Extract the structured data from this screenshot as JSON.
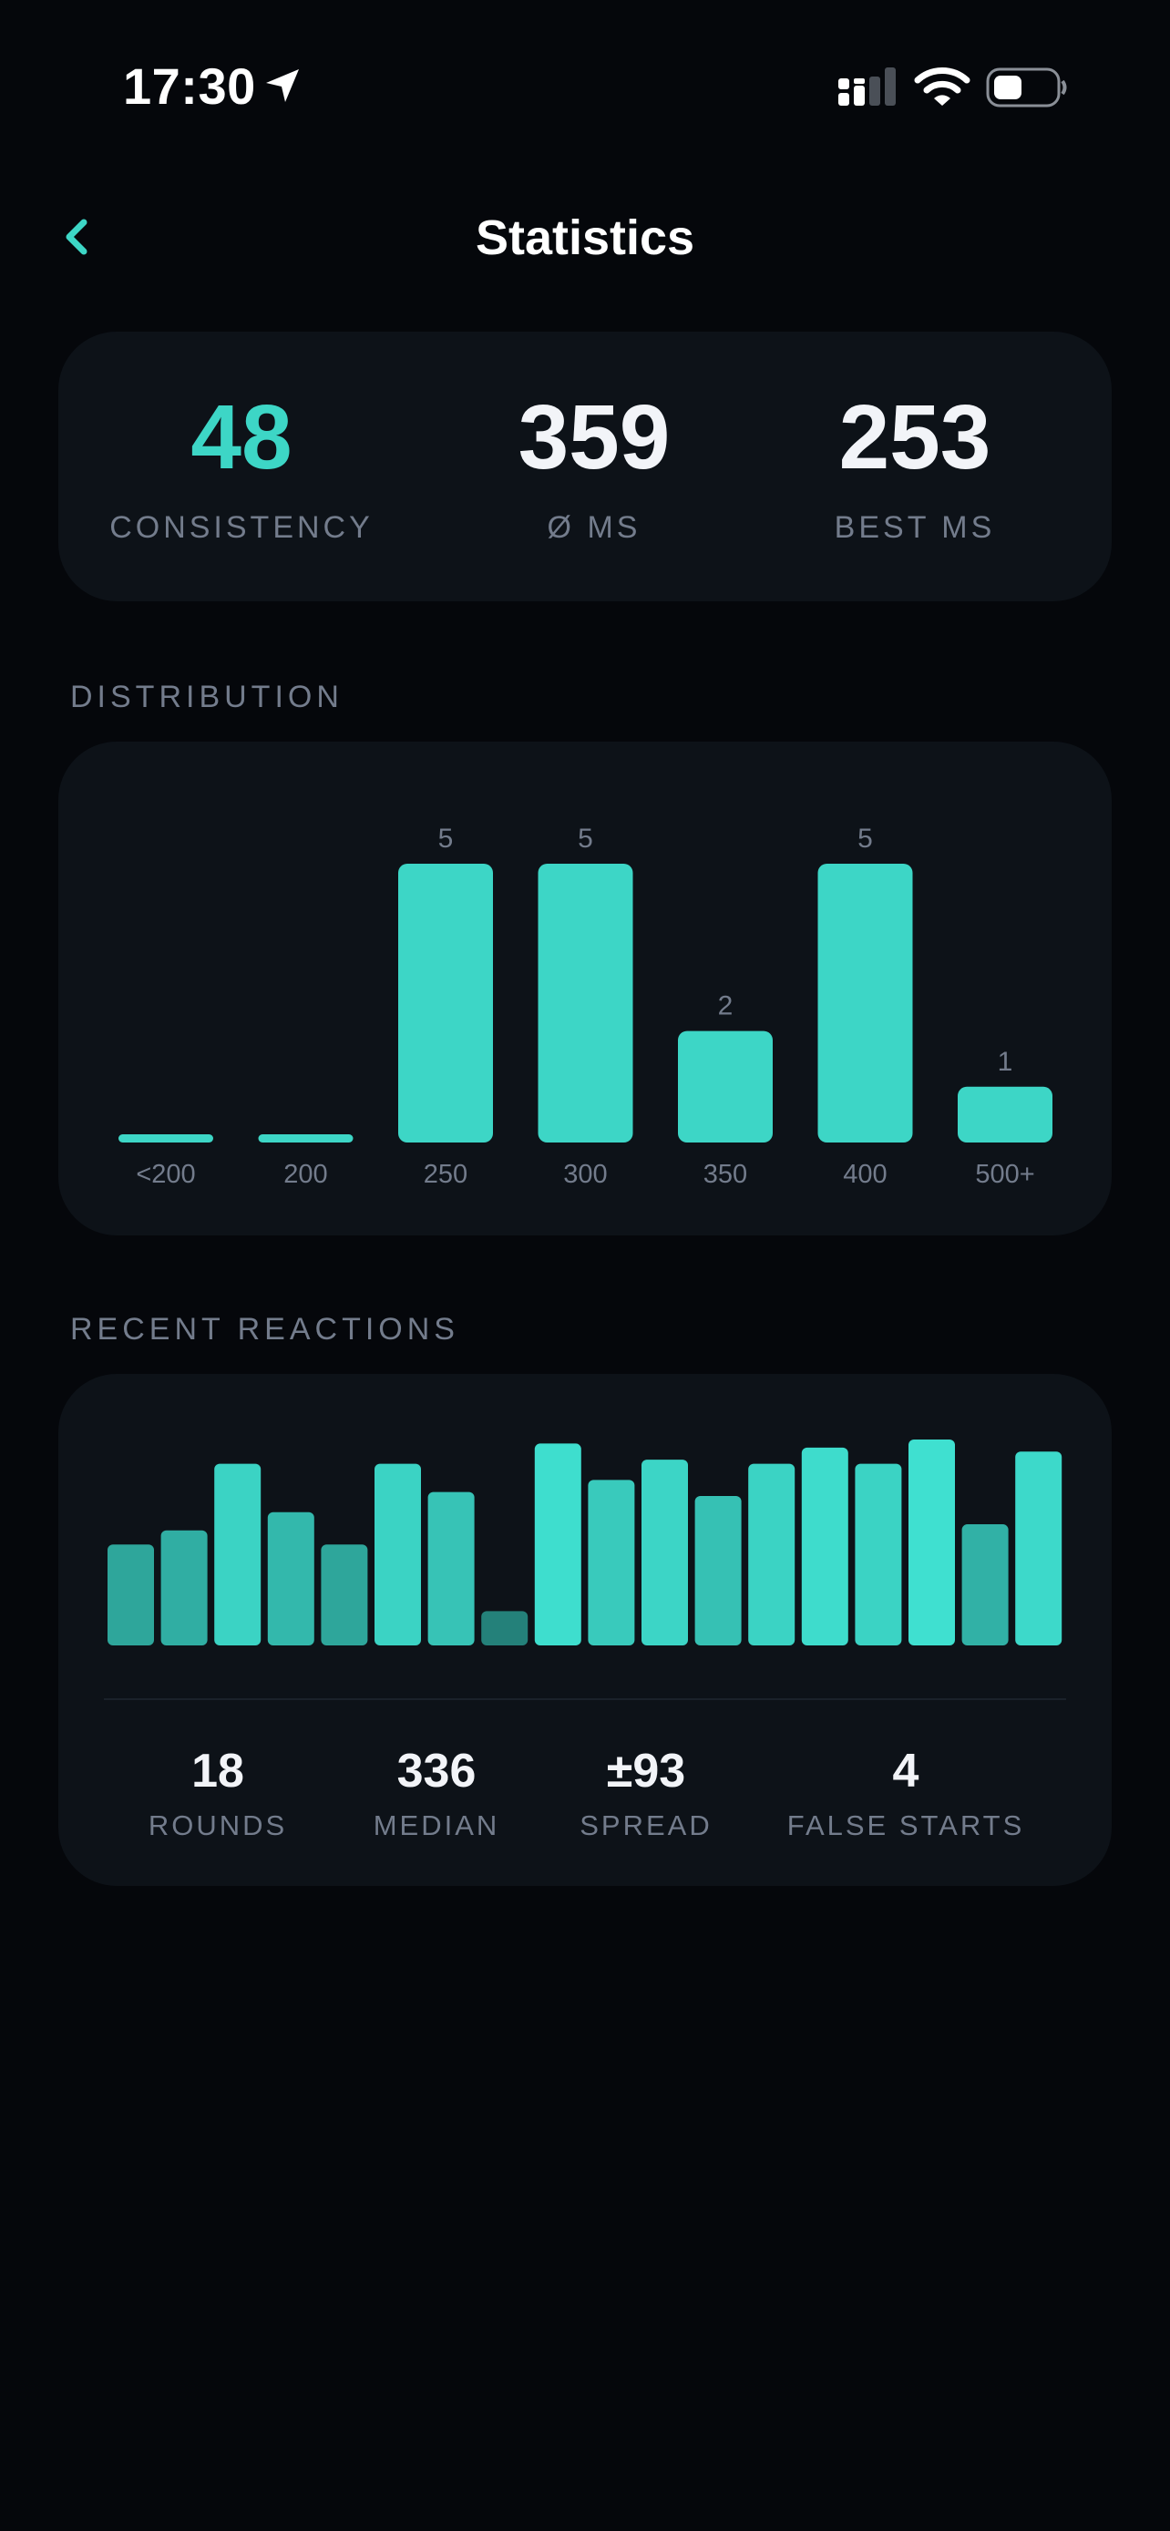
{
  "status_bar": {
    "time": "17:30"
  },
  "nav": {
    "title": "Statistics"
  },
  "summary": {
    "consistency": {
      "value": "48",
      "label": "CONSISTENCY"
    },
    "average": {
      "value": "359",
      "label": "Ø MS"
    },
    "best": {
      "value": "253",
      "label": "BEST MS"
    }
  },
  "colors": {
    "accent": "#3dd6c6",
    "background": "#05070b",
    "card": "#0d1218",
    "label": "#737c8c"
  },
  "distribution": {
    "section_label": "DISTRIBUTION",
    "chart_data": {
      "type": "bar",
      "categories": [
        "<200",
        "200",
        "250",
        "300",
        "350",
        "400",
        "500+"
      ],
      "values": [
        0,
        0,
        5,
        5,
        2,
        5,
        1
      ],
      "value_labels": [
        "",
        "",
        "5",
        "5",
        "2",
        "5",
        "1"
      ],
      "ylim": [
        0,
        5
      ]
    }
  },
  "recent": {
    "section_label": "RECENT REACTIONS",
    "chart_data": {
      "type": "bar",
      "x": [
        1,
        2,
        3,
        4,
        5,
        6,
        7,
        8,
        9,
        10,
        11,
        12,
        13,
        14,
        15,
        16,
        17,
        18
      ],
      "values": [
        0.5,
        0.57,
        0.9,
        0.66,
        0.5,
        0.9,
        0.76,
        0.17,
        1.0,
        0.82,
        0.92,
        0.74,
        0.9,
        0.98,
        0.9,
        1.02,
        0.6,
        0.96
      ]
    },
    "stats": [
      {
        "value": "18",
        "label": "ROUNDS"
      },
      {
        "value": "336",
        "label": "MEDIAN"
      },
      {
        "value": "±93",
        "label": "SPREAD"
      },
      {
        "value": "4",
        "label": "FALSE STARTS"
      }
    ]
  }
}
